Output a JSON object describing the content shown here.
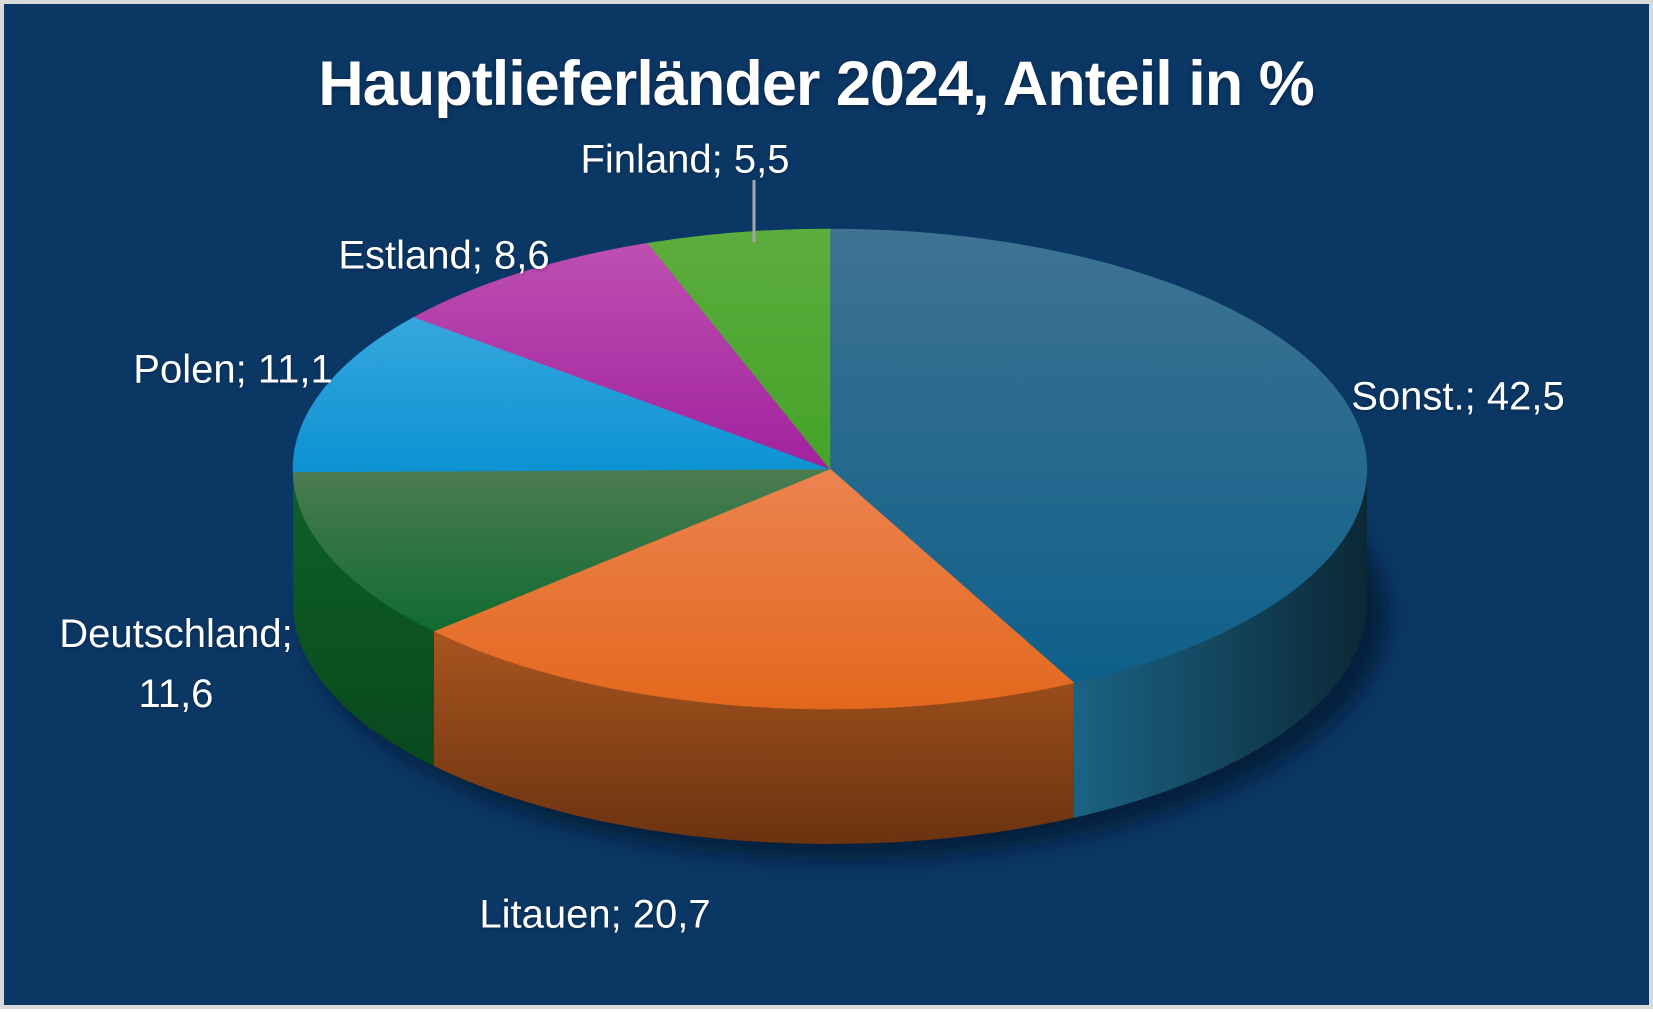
{
  "frame": {
    "background_color": "#0B3765",
    "border_color": "#D9D9D9"
  },
  "chart_data": {
    "type": "pie",
    "style": "3d",
    "title": "Hauptlieferländer 2024, Anteil in %",
    "unit": "%",
    "start_angle_deg": 0,
    "direction": "clockwise",
    "decimal_separator": ",",
    "total": 100,
    "legend": "none",
    "label_format": "{label}; {value}",
    "slices": [
      {
        "label": "Sonst.",
        "value": 42.5,
        "display": "Sonst.; 42,5",
        "color_top": [
          "#3F7392",
          "#0E608A"
        ],
        "color_side": [
          "#1B6384",
          "#0B2836"
        ]
      },
      {
        "label": "Litauen",
        "value": 20.7,
        "display": "Litauen; 20,7",
        "color_top": [
          "#EC8350",
          "#E3681D"
        ],
        "color_side": [
          "#A8551F",
          "#6B3310"
        ]
      },
      {
        "label": "Deutschland",
        "value": 11.6,
        "display": "Deutschland; 11,6",
        "color_top": [
          "#4C7C50",
          "#116B31"
        ],
        "color_side": [
          "#0E6128",
          "#09491E"
        ]
      },
      {
        "label": "Polen",
        "value": 11.1,
        "display": "Polen; 11,1",
        "color_top": [
          "#36A7DE",
          "#0C92D2"
        ],
        "color_side": null
      },
      {
        "label": "Estland",
        "value": 8.6,
        "display": "Estland; 8,6",
        "color_top": [
          "#BE4FB0",
          "#A122A0"
        ],
        "color_side": null
      },
      {
        "label": "Finland",
        "value": 5.5,
        "display": "Finland; 5,5",
        "color_top": [
          "#5CAD3D",
          "#46A329"
        ],
        "color_side": null
      }
    ],
    "leader_line": {
      "slice": "Finland",
      "color": "#A6A6A6"
    },
    "title_color": "#FFFFFF",
    "label_color": "#FFFFFF"
  }
}
